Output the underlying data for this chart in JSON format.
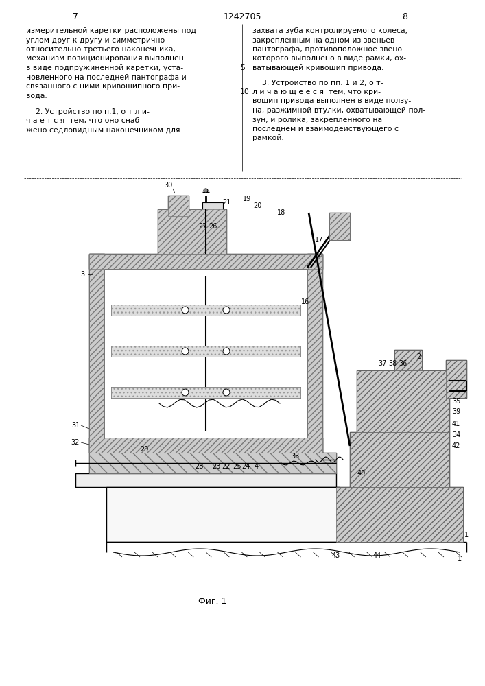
{
  "page_number_left": "7",
  "page_number_center": "1242705",
  "page_number_right": "8",
  "text_left": [
    "измерительной каретки расположены под",
    "углом друг к другу и симметрично",
    "относительно третьего наконечника,",
    "механизм позиционирования выполнен",
    "в виде подпружиненной каретки, уста-",
    "новленного на последней пантографа и",
    "связанного с ними кривошипного при-",
    "вода."
  ],
  "text_left2": [
    "    2. Устройство по п.1, о т л и-",
    "ч а е т с я  тем, что оно снаб-",
    "жено седловидным наконечником для"
  ],
  "text_right": [
    "захвата зуба контролируемого колеса,",
    "закрепленным на одном из звеньев",
    "пантографа, противоположное звено",
    "которого выполнено в виде рамки, ох-",
    "ватывающей кривошип привода."
  ],
  "line_numbers_right": "5",
  "text_right2_header": "    3. Устройство по пп. 1 и 2, о т-",
  "text_right2": [
    "л и ч а ю щ е е с я  тем, что кри-",
    "вошип привода выполнен в виде ползу-",
    "на, разжимной втулки, охватывающей пол-",
    "зун, и ролика, закрепленного на",
    "последнем и взаимодействующего с",
    "рамкой."
  ],
  "line_numbers_right2": "10",
  "caption": "Фиг. 1",
  "bg_color": "#ffffff",
  "line_color": "#000000",
  "hatch_color": "#555555",
  "text_color": "#000000"
}
